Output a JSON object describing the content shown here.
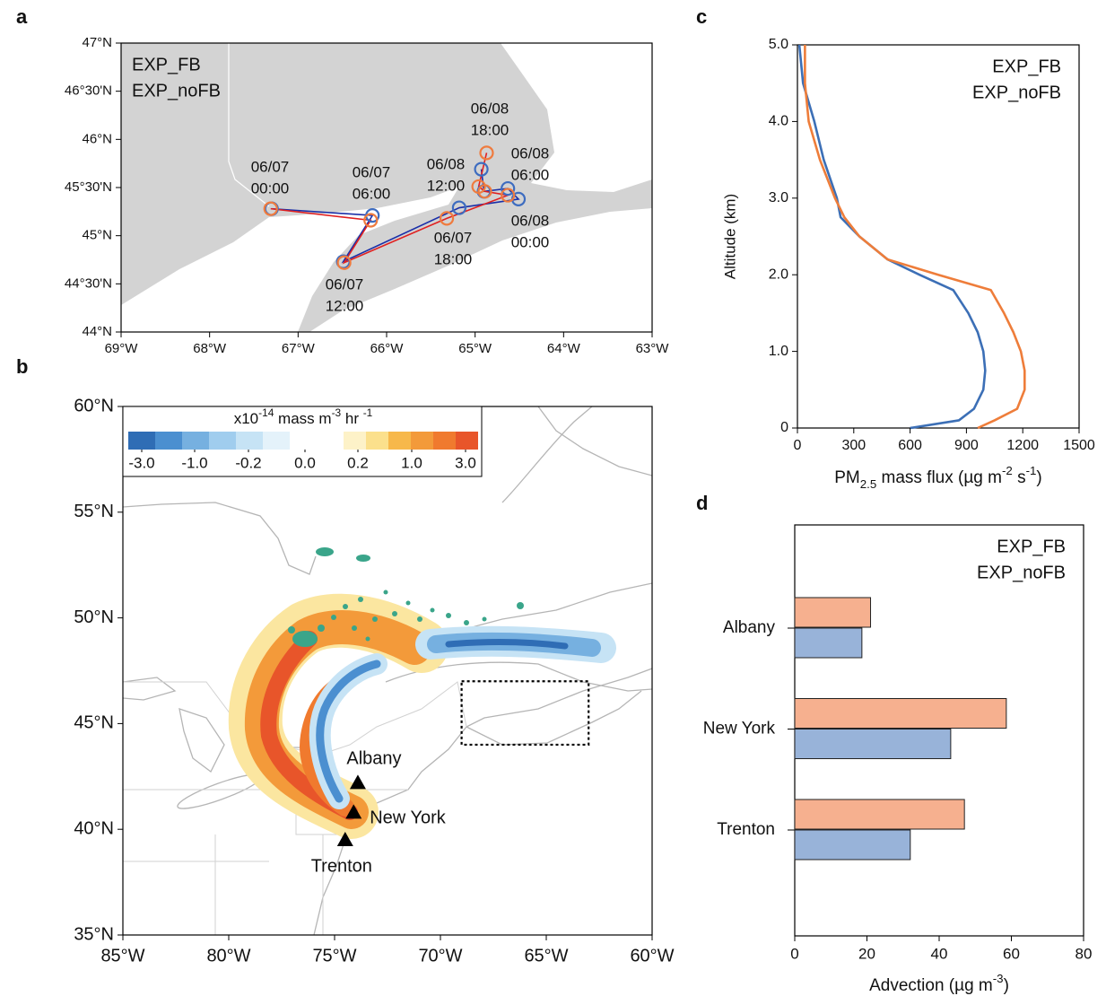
{
  "chart_data": [
    {
      "panel": "a",
      "type": "trajectory",
      "xlim": [
        -69,
        -63
      ],
      "ylim": [
        44,
        47
      ],
      "xticks": [
        {
          "value": -69,
          "label": "69°W"
        },
        {
          "value": -68,
          "label": "68°W"
        },
        {
          "value": -67,
          "label": "67°W"
        },
        {
          "value": -66,
          "label": "66°W"
        },
        {
          "value": -65,
          "label": "65°W"
        },
        {
          "value": -64,
          "label": "64°W"
        },
        {
          "value": -63,
          "label": "63°W"
        }
      ],
      "yticks": [
        {
          "value": 47,
          "label": "47°N"
        },
        {
          "value": 46.5,
          "label": "46°30'N"
        },
        {
          "value": 46,
          "label": "46°N"
        },
        {
          "value": 45.5,
          "label": "45°30'N"
        },
        {
          "value": 45,
          "label": "45°N"
        },
        {
          "value": 44.5,
          "label": "44°30'N"
        },
        {
          "value": 44,
          "label": "44°N"
        }
      ],
      "legend": "top-left",
      "series": [
        {
          "name": "EXP_noFB",
          "color": "#3d6cc0",
          "line_color": "#1a2fa8",
          "x": [
            -67.3,
            -66.16,
            -66.49,
            -65.18,
            -64.51,
            -64.63,
            -64.9,
            -64.93
          ],
          "values": [
            45.28,
            45.21,
            44.73,
            45.29,
            45.38,
            45.49,
            45.46,
            45.69
          ]
        },
        {
          "name": "EXP_FB",
          "color": "#ef7b3e",
          "line_color": "#e02020",
          "x": [
            -67.31,
            -66.18,
            -66.48,
            -65.32,
            -64.63,
            -64.89,
            -64.96,
            -64.87
          ],
          "values": [
            45.28,
            45.16,
            44.72,
            45.18,
            45.42,
            45.46,
            45.51,
            45.86
          ]
        }
      ],
      "annotations": [
        {
          "lines": [
            "06/07",
            "00:00"
          ]
        },
        {
          "lines": [
            "06/07",
            "06:00"
          ]
        },
        {
          "lines": [
            "06/07",
            "12:00"
          ]
        },
        {
          "lines": [
            "06/07",
            "18:00"
          ]
        },
        {
          "lines": [
            "06/08",
            "00:00"
          ]
        },
        {
          "lines": [
            "06/08",
            "06:00"
          ]
        },
        {
          "lines": [
            "06/08",
            "12:00"
          ]
        },
        {
          "lines": [
            "06/08",
            "18:00"
          ]
        }
      ]
    },
    {
      "panel": "b",
      "type": "map",
      "xlim": [
        -85,
        -60
      ],
      "ylim": [
        35,
        60
      ],
      "xticks": [
        {
          "value": -85,
          "label": "85°W"
        },
        {
          "value": -80,
          "label": "80°W"
        },
        {
          "value": -75,
          "label": "75°W"
        },
        {
          "value": -70,
          "label": "70°W"
        },
        {
          "value": -65,
          "label": "65°W"
        },
        {
          "value": -60,
          "label": "60°W"
        }
      ],
      "yticks": [
        {
          "value": 60,
          "label": "60°N"
        },
        {
          "value": 55,
          "label": "55°N"
        },
        {
          "value": 50,
          "label": "50°N"
        },
        {
          "value": 45,
          "label": "45°N"
        },
        {
          "value": 40,
          "label": "40°N"
        },
        {
          "value": 35,
          "label": "35°N"
        }
      ],
      "colorbar": {
        "title": [
          {
            "text": "x10"
          },
          {
            "text": "-14",
            "style": "sup"
          },
          {
            "text": " mass m"
          },
          {
            "text": "-3",
            "style": "sup"
          },
          {
            "text": " hr "
          },
          {
            "text": "-1",
            "style": "sup"
          }
        ],
        "colors": [
          "#2f6db5",
          "#4b8fd0",
          "#76b0e0",
          "#a0cdee",
          "#c6e3f5",
          "#e4f2fa",
          "#fdf2c8",
          "#fbe08c",
          "#f7b84a",
          "#f39a3a",
          "#f07a2e",
          "#e8552a"
        ],
        "ticks": [
          {
            "value": -3,
            "label": "-3.0"
          },
          {
            "value": -1,
            "label": "-1.0"
          },
          {
            "value": -0.2,
            "label": "-0.2"
          },
          {
            "value": 0,
            "label": "0.0"
          },
          {
            "value": 0.2,
            "label": "0.2"
          },
          {
            "value": 1,
            "label": "1.0"
          },
          {
            "value": 3,
            "label": "3.0"
          }
        ]
      },
      "cities": [
        {
          "name": "Albany",
          "lon": -73.9,
          "lat": 42.2
        },
        {
          "name": "New York",
          "lon": -74.1,
          "lat": 40.8
        },
        {
          "name": "Trenton",
          "lon": -74.5,
          "lat": 39.5
        }
      ]
    },
    {
      "panel": "c",
      "type": "line",
      "xlim": [
        0,
        1500
      ],
      "ylim": [
        0,
        5
      ],
      "xticks": [
        0,
        300,
        600,
        900,
        1200,
        1500
      ],
      "yticks": [
        0,
        {
          "value": 1,
          "label": "1.0"
        },
        {
          "value": 2,
          "label": "2.0"
        },
        {
          "value": 3,
          "label": "3.0"
        },
        {
          "value": 4,
          "label": "4.0"
        },
        {
          "value": 5,
          "label": "5.0"
        }
      ],
      "ylabel": "Altitude (km)",
      "xlabel": [
        {
          "text": "PM"
        },
        {
          "text": "2.5",
          "style": "sub"
        },
        {
          "text": " mass flux (µg m"
        },
        {
          "text": "-2",
          "style": "sup"
        },
        {
          "text": " s"
        },
        {
          "text": "-1",
          "style": "sup"
        },
        {
          "text": ")"
        }
      ],
      "legend": "top-right",
      "y": [
        0,
        0.1,
        0.25,
        0.5,
        0.75,
        1.0,
        1.25,
        1.5,
        1.8,
        2.0,
        2.2,
        2.5,
        2.75,
        3.0,
        3.5,
        4.0,
        4.5,
        5.0
      ],
      "series": [
        {
          "name": "EXP_FB",
          "color": "#ee7d3a",
          "values": [
            960,
            1050,
            1170,
            1210,
            1210,
            1190,
            1150,
            1100,
            1030,
            750,
            480,
            330,
            250,
            200,
            120,
            60,
            40,
            40
          ]
        },
        {
          "name": "EXP_noFB",
          "color": "#3c6fb6",
          "values": [
            600,
            860,
            940,
            990,
            1000,
            990,
            960,
            910,
            830,
            650,
            480,
            330,
            230,
            210,
            140,
            90,
            30,
            10
          ]
        }
      ]
    },
    {
      "panel": "d",
      "type": "bar",
      "orientation": "horizontal",
      "categories": [
        "Albany",
        "New York",
        "Trenton"
      ],
      "xlim": [
        0,
        80
      ],
      "xticks": [
        0,
        20,
        40,
        60,
        80
      ],
      "xlabel": [
        {
          "text": "Advection (µg m"
        },
        {
          "text": "-3",
          "style": "sup"
        },
        {
          "text": ")"
        }
      ],
      "legend": "top-right",
      "series": [
        {
          "name": "EXP_FB",
          "color": "#f6b08f",
          "legend_color": "#ee7d3a",
          "values": [
            21,
            58.6,
            47
          ]
        },
        {
          "name": "EXP_noFB",
          "color": "#98b3d9",
          "legend_color": "#3c6fb6",
          "values": [
            18.6,
            43.2,
            32
          ]
        }
      ]
    }
  ]
}
